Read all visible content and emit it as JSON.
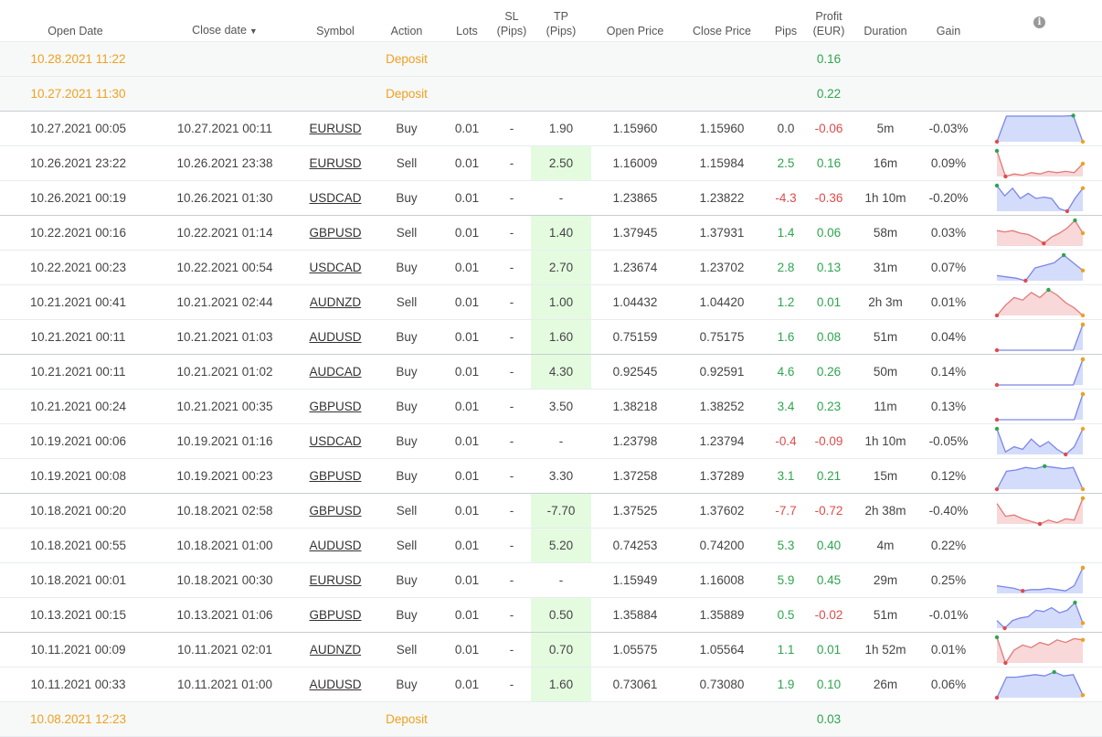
{
  "header": {
    "open_date": "Open Date",
    "close_date": "Close date",
    "sort_arrow": "▼",
    "symbol": "Symbol",
    "action": "Action",
    "lots": "Lots",
    "sl_1": "SL",
    "sl_2": "(Pips)",
    "tp_1": "TP",
    "tp_2": "(Pips)",
    "open_price": "Open Price",
    "close_price": "Close Price",
    "pips": "Pips",
    "profit_1": "Profit",
    "profit_2": "(EUR)",
    "duration": "Duration",
    "gain": "Gain",
    "info_icon": "i"
  },
  "colors": {
    "positive": "#2ea44f",
    "negative": "#e04b4b",
    "deposit": "#f0a020",
    "tp_highlight": "#e4fbe0",
    "spark_blue": "#7b86e8",
    "spark_red": "#e07a7a"
  },
  "rows": [
    {
      "type": "deposit",
      "open": "10.28.2021 11:22",
      "action": "Deposit",
      "profit": "0.16",
      "top": false
    },
    {
      "type": "deposit",
      "open": "10.27.2021 11:30",
      "action": "Deposit",
      "profit": "0.22",
      "top": true
    },
    {
      "type": "trade",
      "open": "10.27.2021 00:05",
      "close": "10.27.2021 00:11",
      "symbol": "EURUSD",
      "action": "Buy",
      "lots": "0.01",
      "sl": "-",
      "tp": "1.90",
      "tp_hit": false,
      "open_price": "1.15960",
      "close_price": "1.15960",
      "pips": "0.0",
      "pips_sign": "neu",
      "profit": "-0.06",
      "profit_sign": "neg",
      "duration": "5m",
      "gain": "-0.03%",
      "spark": {
        "color": "blue",
        "values": [
          0,
          1,
          1,
          1,
          1,
          1,
          1,
          1,
          1.02,
          0
        ]
      }
    },
    {
      "type": "trade",
      "open": "10.26.2021 23:22",
      "close": "10.26.2021 23:38",
      "symbol": "EURUSD",
      "action": "Sell",
      "lots": "0.01",
      "sl": "-",
      "tp": "2.50",
      "tp_hit": true,
      "open_price": "1.16009",
      "close_price": "1.15984",
      "pips": "2.5",
      "pips_sign": "pos",
      "profit": "0.16",
      "profit_sign": "pos",
      "duration": "16m",
      "gain": "0.09%",
      "spark": {
        "color": "red",
        "values": [
          1,
          0,
          0.1,
          0.05,
          0.15,
          0.1,
          0.2,
          0.15,
          0.2,
          0.15,
          0.5
        ]
      }
    },
    {
      "type": "trade",
      "open": "10.26.2021 00:19",
      "close": "10.26.2021 01:30",
      "symbol": "USDCAD",
      "action": "Buy",
      "lots": "0.01",
      "sl": "-",
      "tp": "-",
      "tp_hit": false,
      "open_price": "1.23865",
      "close_price": "1.23822",
      "pips": "-4.3",
      "pips_sign": "neg",
      "profit": "-0.36",
      "profit_sign": "neg",
      "duration": "1h 10m",
      "gain": "-0.20%",
      "spark": {
        "color": "blue",
        "values": [
          1,
          0.6,
          0.9,
          0.5,
          0.7,
          0.5,
          0.55,
          0.5,
          0.1,
          0,
          0.5,
          0.9
        ]
      },
      "top": true
    },
    {
      "type": "trade",
      "open": "10.22.2021 00:16",
      "close": "10.22.2021 01:14",
      "symbol": "GBPUSD",
      "action": "Sell",
      "lots": "0.01",
      "sl": "-",
      "tp": "1.40",
      "tp_hit": true,
      "open_price": "1.37945",
      "close_price": "1.37931",
      "pips": "1.4",
      "pips_sign": "pos",
      "profit": "0.06",
      "profit_sign": "pos",
      "duration": "58m",
      "gain": "0.03%",
      "spark": {
        "color": "red",
        "values": [
          0.6,
          0.55,
          0.6,
          0.5,
          0.45,
          0.3,
          0.1,
          0.35,
          0.5,
          0.7,
          1,
          0.5
        ]
      }
    },
    {
      "type": "trade",
      "open": "10.22.2021 00:23",
      "close": "10.22.2021 00:54",
      "symbol": "USDCAD",
      "action": "Buy",
      "lots": "0.01",
      "sl": "-",
      "tp": "2.70",
      "tp_hit": true,
      "open_price": "1.23674",
      "close_price": "1.23702",
      "pips": "2.8",
      "pips_sign": "pos",
      "profit": "0.13",
      "profit_sign": "pos",
      "duration": "31m",
      "gain": "0.07%",
      "spark": {
        "color": "blue",
        "values": [
          0.2,
          0.15,
          0.1,
          0,
          0.5,
          0.6,
          0.7,
          1,
          0.7,
          0.4
        ]
      }
    },
    {
      "type": "trade",
      "open": "10.21.2021 00:41",
      "close": "10.21.2021 02:44",
      "symbol": "AUDNZD",
      "action": "Sell",
      "lots": "0.01",
      "sl": "-",
      "tp": "1.00",
      "tp_hit": true,
      "open_price": "1.04432",
      "close_price": "1.04420",
      "pips": "1.2",
      "pips_sign": "pos",
      "profit": "0.01",
      "profit_sign": "pos",
      "duration": "2h 3m",
      "gain": "0.01%",
      "spark": {
        "color": "red",
        "values": [
          0,
          0.4,
          0.7,
          0.6,
          0.9,
          0.7,
          1,
          0.8,
          0.5,
          0.3,
          0
        ]
      }
    },
    {
      "type": "trade",
      "open": "10.21.2021 00:11",
      "close": "10.21.2021 01:03",
      "symbol": "AUDUSD",
      "action": "Buy",
      "lots": "0.01",
      "sl": "-",
      "tp": "1.60",
      "tp_hit": true,
      "open_price": "0.75159",
      "close_price": "0.75175",
      "pips": "1.6",
      "pips_sign": "pos",
      "profit": "0.08",
      "profit_sign": "pos",
      "duration": "51m",
      "gain": "0.04%",
      "spark": {
        "color": "blue",
        "values": [
          0,
          0,
          0,
          0,
          0,
          0,
          0,
          0,
          0,
          1
        ]
      },
      "top": true
    },
    {
      "type": "trade",
      "open": "10.21.2021 00:11",
      "close": "10.21.2021 01:02",
      "symbol": "AUDCAD",
      "action": "Buy",
      "lots": "0.01",
      "sl": "-",
      "tp": "4.30",
      "tp_hit": true,
      "open_price": "0.92545",
      "close_price": "0.92591",
      "pips": "4.6",
      "pips_sign": "pos",
      "profit": "0.26",
      "profit_sign": "pos",
      "duration": "50m",
      "gain": "0.14%",
      "spark": {
        "color": "blue",
        "values": [
          0,
          0,
          0,
          0,
          0,
          0,
          0,
          0,
          0,
          1
        ]
      }
    },
    {
      "type": "trade",
      "open": "10.21.2021 00:24",
      "close": "10.21.2021 00:35",
      "symbol": "GBPUSD",
      "action": "Buy",
      "lots": "0.01",
      "sl": "-",
      "tp": "3.50",
      "tp_hit": false,
      "open_price": "1.38218",
      "close_price": "1.38252",
      "pips": "3.4",
      "pips_sign": "pos",
      "profit": "0.23",
      "profit_sign": "pos",
      "duration": "11m",
      "gain": "0.13%",
      "spark": {
        "color": "blue",
        "values": [
          0,
          0,
          0,
          0,
          0,
          0,
          0,
          0,
          0,
          0,
          1
        ]
      }
    },
    {
      "type": "trade",
      "open": "10.19.2021 00:06",
      "close": "10.19.2021 01:16",
      "symbol": "USDCAD",
      "action": "Buy",
      "lots": "0.01",
      "sl": "-",
      "tp": "-",
      "tp_hit": false,
      "open_price": "1.23798",
      "close_price": "1.23794",
      "pips": "-0.4",
      "pips_sign": "neg",
      "profit": "-0.09",
      "profit_sign": "neg",
      "duration": "1h 10m",
      "gain": "-0.05%",
      "spark": {
        "color": "blue",
        "values": [
          1,
          0.1,
          0.3,
          0.2,
          0.6,
          0.3,
          0.5,
          0.2,
          0,
          0.3,
          1
        ]
      }
    },
    {
      "type": "trade",
      "open": "10.19.2021 00:08",
      "close": "10.19.2021 00:23",
      "symbol": "GBPUSD",
      "action": "Buy",
      "lots": "0.01",
      "sl": "-",
      "tp": "3.30",
      "tp_hit": false,
      "open_price": "1.37258",
      "close_price": "1.37289",
      "pips": "3.1",
      "pips_sign": "pos",
      "profit": "0.21",
      "profit_sign": "pos",
      "duration": "15m",
      "gain": "0.12%",
      "spark": {
        "color": "blue",
        "values": [
          0,
          0.7,
          0.75,
          0.85,
          0.8,
          0.9,
          0.85,
          0.8,
          0.85,
          0
        ]
      },
      "top": true
    },
    {
      "type": "trade",
      "open": "10.18.2021 00:20",
      "close": "10.18.2021 02:58",
      "symbol": "GBPUSD",
      "action": "Sell",
      "lots": "0.01",
      "sl": "-",
      "tp": "-7.70",
      "tp_hit": true,
      "open_price": "1.37525",
      "close_price": "1.37602",
      "pips": "-7.7",
      "pips_sign": "neg",
      "profit": "-0.72",
      "profit_sign": "neg",
      "duration": "2h 38m",
      "gain": "-0.40%",
      "spark": {
        "color": "red",
        "values": [
          0.8,
          0.3,
          0.35,
          0.2,
          0.1,
          0,
          0.15,
          0.05,
          0.2,
          0.15,
          1
        ]
      }
    },
    {
      "type": "trade",
      "open": "10.18.2021 00:55",
      "close": "10.18.2021 01:00",
      "symbol": "AUDUSD",
      "action": "Sell",
      "lots": "0.01",
      "sl": "-",
      "tp": "5.20",
      "tp_hit": true,
      "open_price": "0.74253",
      "close_price": "0.74200",
      "pips": "5.3",
      "pips_sign": "pos",
      "profit": "0.40",
      "profit_sign": "pos",
      "duration": "4m",
      "gain": "0.22%"
    },
    {
      "type": "trade",
      "open": "10.18.2021 00:01",
      "close": "10.18.2021 00:30",
      "symbol": "EURUSD",
      "action": "Buy",
      "lots": "0.01",
      "sl": "-",
      "tp": "-",
      "tp_hit": false,
      "open_price": "1.15949",
      "close_price": "1.16008",
      "pips": "5.9",
      "pips_sign": "pos",
      "profit": "0.45",
      "profit_sign": "pos",
      "duration": "29m",
      "gain": "0.25%",
      "spark": {
        "color": "blue",
        "values": [
          0.3,
          0.25,
          0.2,
          0.1,
          0.15,
          0.15,
          0.2,
          0.15,
          0.1,
          0.3,
          1
        ]
      }
    },
    {
      "type": "trade",
      "open": "10.13.2021 00:15",
      "close": "10.13.2021 01:06",
      "symbol": "GBPUSD",
      "action": "Buy",
      "lots": "0.01",
      "sl": "-",
      "tp": "0.50",
      "tp_hit": true,
      "open_price": "1.35884",
      "close_price": "1.35889",
      "pips": "0.5",
      "pips_sign": "pos",
      "profit": "-0.02",
      "profit_sign": "neg",
      "duration": "51m",
      "gain": "-0.01%",
      "spark": {
        "color": "blue",
        "values": [
          0.3,
          0,
          0.3,
          0.4,
          0.45,
          0.7,
          0.65,
          0.8,
          0.6,
          0.7,
          1,
          0.2
        ]
      },
      "top": true
    },
    {
      "type": "trade",
      "open": "10.11.2021 00:09",
      "close": "10.11.2021 02:01",
      "symbol": "AUDNZD",
      "action": "Sell",
      "lots": "0.01",
      "sl": "-",
      "tp": "0.70",
      "tp_hit": true,
      "open_price": "1.05575",
      "close_price": "1.05564",
      "pips": "1.1",
      "pips_sign": "pos",
      "profit": "0.01",
      "profit_sign": "pos",
      "duration": "1h 52m",
      "gain": "0.01%",
      "spark": {
        "color": "red",
        "values": [
          1,
          0,
          0.5,
          0.7,
          0.6,
          0.8,
          0.7,
          0.9,
          0.8,
          0.95,
          0.9
        ]
      }
    },
    {
      "type": "trade",
      "open": "10.11.2021 00:33",
      "close": "10.11.2021 01:00",
      "symbol": "AUDUSD",
      "action": "Buy",
      "lots": "0.01",
      "sl": "-",
      "tp": "1.60",
      "tp_hit": true,
      "open_price": "0.73061",
      "close_price": "0.73080",
      "pips": "1.9",
      "pips_sign": "pos",
      "profit": "0.10",
      "profit_sign": "pos",
      "duration": "26m",
      "gain": "0.06%",
      "spark": {
        "color": "blue",
        "values": [
          0,
          0.8,
          0.8,
          0.85,
          0.9,
          0.85,
          1,
          0.85,
          0.9,
          0.1
        ]
      }
    },
    {
      "type": "deposit",
      "open": "10.08.2021 12:23",
      "action": "Deposit",
      "profit": "0.03",
      "top": false
    }
  ]
}
